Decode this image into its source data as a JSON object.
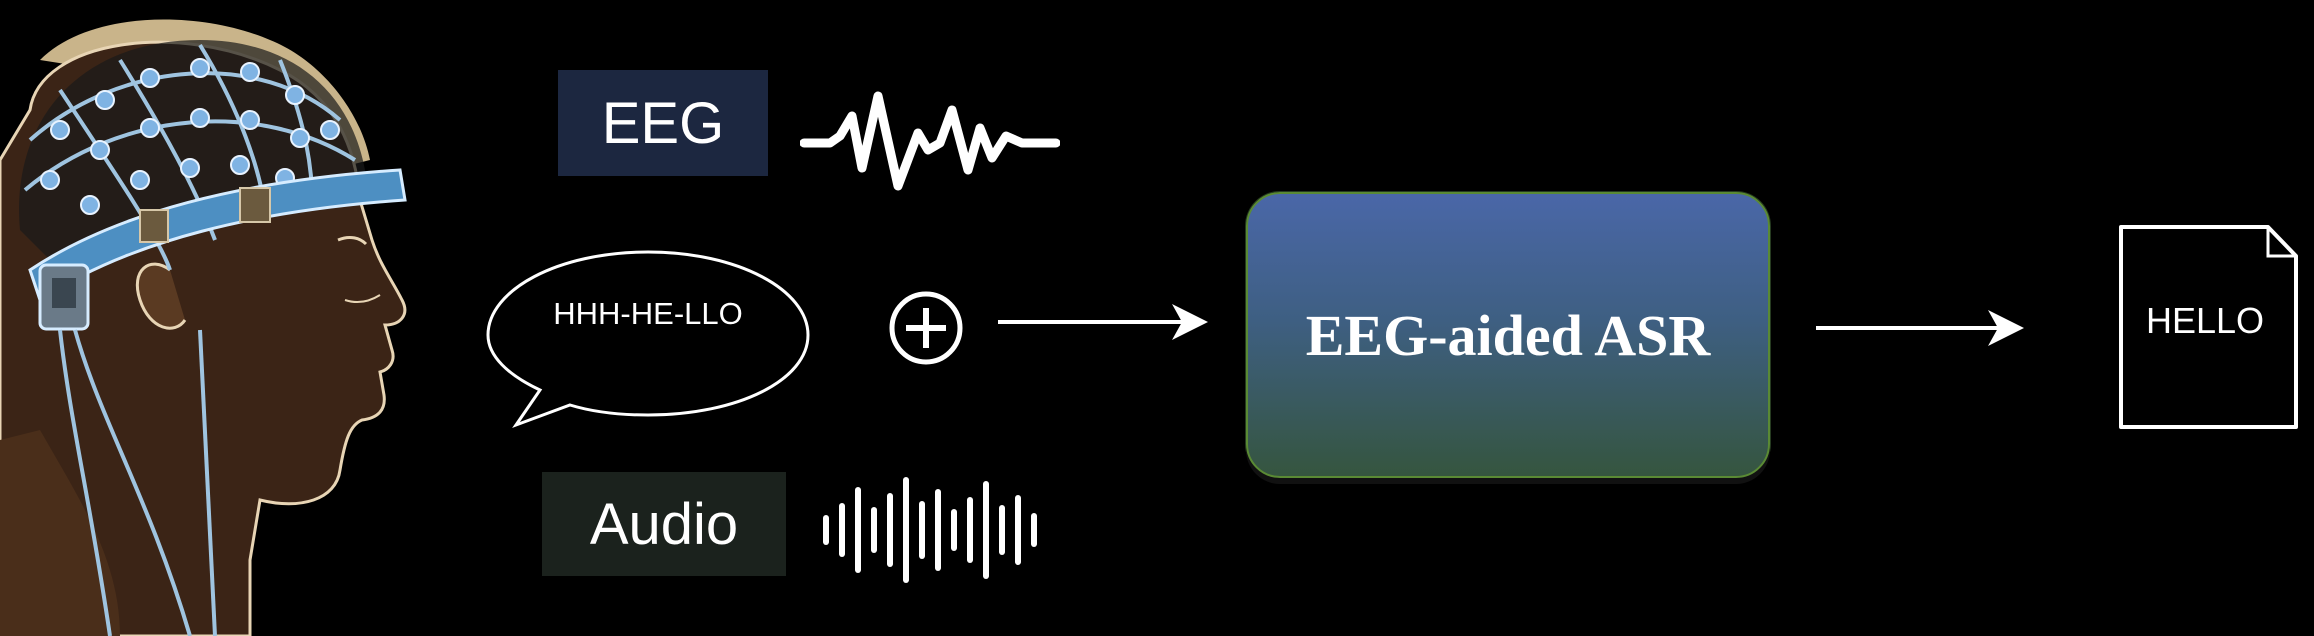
{
  "inputs": {
    "eeg_label": "EEG",
    "audio_label": "Audio",
    "speech_bubble": "HHH-HE-LLO"
  },
  "model": {
    "label": "EEG-aided ASR"
  },
  "output": {
    "document_text": "HELLO"
  },
  "icons": {
    "combine": "plus-circle-icon",
    "eeg_signal": "eeg-waveform-icon",
    "audio_signal": "audio-waveform-icon",
    "output": "document-icon"
  },
  "colors": {
    "background": "#000000",
    "eeg_box": "#1c2740",
    "audio_box": "#1b221d",
    "asr_box_top": "#4a67a8",
    "asr_box_bottom": "#35553f",
    "asr_border": "#5a8a34"
  }
}
